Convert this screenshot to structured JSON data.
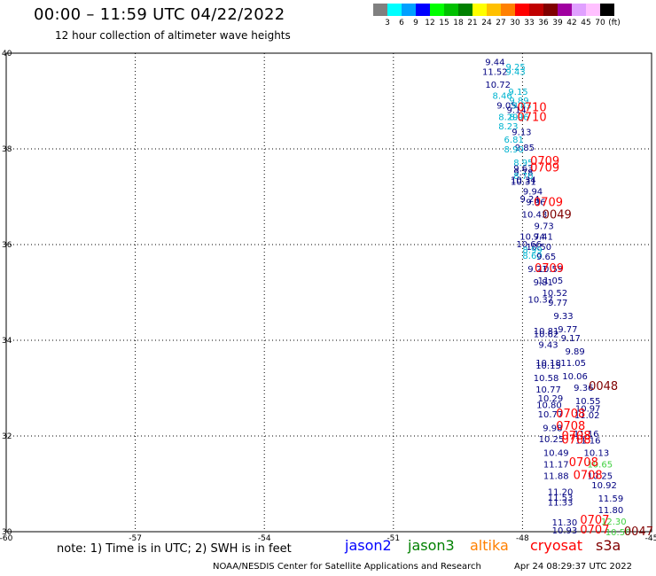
{
  "header": {
    "title": "00:00 – 11:59 UTC 04/22/2022",
    "subtitle": "12 hour collection of altimeter wave heights"
  },
  "color_scale": {
    "colors": [
      "#808080",
      "#00ffff",
      "#00a0ff",
      "#0000ff",
      "#00ff00",
      "#00c000",
      "#008000",
      "#ffff00",
      "#ffc000",
      "#ff8000",
      "#ff0000",
      "#c00000",
      "#800000",
      "#a000a0",
      "#e0a0ff",
      "#ffc0ff",
      "#000000"
    ],
    "labels": [
      "3",
      "6",
      "9",
      "12",
      "15",
      "18",
      "21",
      "24",
      "27",
      "30",
      "33",
      "36",
      "39",
      "42",
      "45",
      "70",
      "(ft)"
    ]
  },
  "axes": {
    "lat_labels": [
      "40",
      "38",
      "36",
      "34",
      "32",
      "30"
    ],
    "lon_labels": [
      "-60",
      "-57",
      "-54",
      "-51",
      "-48",
      "-45"
    ]
  },
  "observations": {
    "colors": {
      "dark": "#000080",
      "light": "#00b4d0",
      "red": "#ff0000",
      "darkred": "#800000",
      "green": "#40d040",
      "orange": "#e08000"
    },
    "points": [
      {
        "t": "9.44",
        "c": "dark",
        "lon": -48.64,
        "lat": 39.82
      },
      {
        "t": "9.25",
        "c": "light",
        "lon": -48.16,
        "lat": 39.72
      },
      {
        "t": "11.52",
        "c": "dark",
        "lon": -48.64,
        "lat": 39.62
      },
      {
        "t": "9.43",
        "c": "light",
        "lon": -48.16,
        "lat": 39.62
      },
      {
        "t": "10.72",
        "c": "dark",
        "lon": -48.57,
        "lat": 39.35
      },
      {
        "t": "9.15",
        "c": "light",
        "lon": -48.1,
        "lat": 39.2
      },
      {
        "t": "8.46",
        "c": "light",
        "lon": -48.47,
        "lat": 39.12
      },
      {
        "t": "9.89",
        "c": "light",
        "lon": -48.08,
        "lat": 39.02
      },
      {
        "t": "9.05",
        "c": "dark",
        "lon": -48.37,
        "lat": 38.92
      },
      {
        "t": "9.83",
        "c": "light",
        "lon": -48.02,
        "lat": 38.92
      },
      {
        "t": "9.14",
        "c": "dark",
        "lon": -48.14,
        "lat": 38.82
      },
      {
        "t": "8.29",
        "c": "light",
        "lon": -48.33,
        "lat": 38.68
      },
      {
        "t": "8.96",
        "c": "light",
        "lon": -48.08,
        "lat": 38.68
      },
      {
        "t": "8.23",
        "c": "light",
        "lon": -48.33,
        "lat": 38.48
      },
      {
        "t": "9.13",
        "c": "dark",
        "lon": -48.02,
        "lat": 38.36
      },
      {
        "t": "6.81",
        "c": "light",
        "lon": -48.2,
        "lat": 38.2
      },
      {
        "t": "9.85",
        "c": "dark",
        "lon": -47.95,
        "lat": 38.04
      },
      {
        "t": "8.90",
        "c": "light",
        "lon": -48.2,
        "lat": 38.0
      },
      {
        "t": "8.95",
        "c": "light",
        "lon": -47.98,
        "lat": 37.72
      },
      {
        "t": "9.63",
        "c": "dark",
        "lon": -47.98,
        "lat": 37.6
      },
      {
        "t": "9.78",
        "c": "dark",
        "lon": -47.98,
        "lat": 37.52
      },
      {
        "t": "8.70",
        "c": "light",
        "lon": -47.98,
        "lat": 37.44
      },
      {
        "t": "10.34",
        "c": "dark",
        "lon": -47.98,
        "lat": 37.36
      },
      {
        "t": "10.31",
        "c": "dark",
        "lon": -47.98,
        "lat": 37.32
      },
      {
        "t": "9.94",
        "c": "dark",
        "lon": -47.76,
        "lat": 37.12
      },
      {
        "t": "9.24",
        "c": "dark",
        "lon": -47.83,
        "lat": 36.96
      },
      {
        "t": "9.96",
        "c": "dark",
        "lon": -47.69,
        "lat": 36.9
      },
      {
        "t": "10.43",
        "c": "dark",
        "lon": -47.72,
        "lat": 36.64
      },
      {
        "t": "9.73",
        "c": "dark",
        "lon": -47.5,
        "lat": 36.4
      },
      {
        "t": "9.41",
        "c": "dark",
        "lon": -47.52,
        "lat": 36.18
      },
      {
        "t": "10.74",
        "c": "dark",
        "lon": -47.77,
        "lat": 36.18
      },
      {
        "t": "10.66",
        "c": "dark",
        "lon": -47.85,
        "lat": 36.02
      },
      {
        "t": "10.50",
        "c": "dark",
        "lon": -47.62,
        "lat": 35.96
      },
      {
        "t": "8.99",
        "c": "light",
        "lon": -47.77,
        "lat": 35.9
      },
      {
        "t": "8.60",
        "c": "light",
        "lon": -47.77,
        "lat": 35.78
      },
      {
        "t": "9.65",
        "c": "dark",
        "lon": -47.45,
        "lat": 35.76
      },
      {
        "t": "9.21",
        "c": "dark",
        "lon": -47.65,
        "lat": 35.5
      },
      {
        "t": "10.59",
        "c": "dark",
        "lon": -47.35,
        "lat": 35.5
      },
      {
        "t": "11.05",
        "c": "dark",
        "lon": -47.35,
        "lat": 35.26
      },
      {
        "t": "9.81",
        "c": "dark",
        "lon": -47.52,
        "lat": 35.22
      },
      {
        "t": "10.52",
        "c": "dark",
        "lon": -47.25,
        "lat": 35.0
      },
      {
        "t": "10.37",
        "c": "dark",
        "lon": -47.58,
        "lat": 34.86
      },
      {
        "t": "9.77",
        "c": "dark",
        "lon": -47.18,
        "lat": 34.8
      },
      {
        "t": "9.33",
        "c": "dark",
        "lon": -47.05,
        "lat": 34.52
      },
      {
        "t": "9.77",
        "c": "dark",
        "lon": -46.95,
        "lat": 34.24
      },
      {
        "t": "10.81",
        "c": "dark",
        "lon": -47.45,
        "lat": 34.2
      },
      {
        "t": "10.62",
        "c": "dark",
        "lon": -47.45,
        "lat": 34.14
      },
      {
        "t": "9.17",
        "c": "dark",
        "lon": -46.88,
        "lat": 34.06
      },
      {
        "t": "9.43",
        "c": "dark",
        "lon": -47.4,
        "lat": 33.92
      },
      {
        "t": "9.89",
        "c": "dark",
        "lon": -46.78,
        "lat": 33.78
      },
      {
        "t": "10.18",
        "c": "dark",
        "lon": -47.4,
        "lat": 33.54
      },
      {
        "t": "11.05",
        "c": "dark",
        "lon": -46.82,
        "lat": 33.54
      },
      {
        "t": "10.15",
        "c": "dark",
        "lon": -47.4,
        "lat": 33.48
      },
      {
        "t": "10.06",
        "c": "dark",
        "lon": -46.78,
        "lat": 33.26
      },
      {
        "t": "10.58",
        "c": "dark",
        "lon": -47.45,
        "lat": 33.22
      },
      {
        "t": "9.36",
        "c": "dark",
        "lon": -46.58,
        "lat": 33.02
      },
      {
        "t": "10.77",
        "c": "dark",
        "lon": -47.4,
        "lat": 32.98
      },
      {
        "t": "10.55",
        "c": "dark",
        "lon": -46.48,
        "lat": 32.74
      },
      {
        "t": "10.29",
        "c": "dark",
        "lon": -47.35,
        "lat": 32.8
      },
      {
        "t": "10.80",
        "c": "dark",
        "lon": -47.38,
        "lat": 32.66
      },
      {
        "t": "10.97",
        "c": "dark",
        "lon": -46.48,
        "lat": 32.58
      },
      {
        "t": "10.77",
        "c": "dark",
        "lon": -47.35,
        "lat": 32.46
      },
      {
        "t": "11.02",
        "c": "dark",
        "lon": -46.5,
        "lat": 32.44
      },
      {
        "t": "9.98",
        "c": "dark",
        "lon": -47.3,
        "lat": 32.18
      },
      {
        "t": "11.16",
        "c": "dark",
        "lon": -46.52,
        "lat": 32.06
      },
      {
        "t": "10.25",
        "c": "dark",
        "lon": -47.33,
        "lat": 31.94
      },
      {
        "t": "11.16",
        "c": "dark",
        "lon": -46.48,
        "lat": 31.92
      },
      {
        "t": "10.49",
        "c": "dark",
        "lon": -47.22,
        "lat": 31.66
      },
      {
        "t": "10.13",
        "c": "dark",
        "lon": -46.28,
        "lat": 31.66
      },
      {
        "t": "11.17",
        "c": "dark",
        "lon": -47.22,
        "lat": 31.42
      },
      {
        "t": "10.65",
        "c": "green",
        "lon": -46.2,
        "lat": 31.42
      },
      {
        "t": "11.88",
        "c": "dark",
        "lon": -47.22,
        "lat": 31.18
      },
      {
        "t": "10.25",
        "c": "dark",
        "lon": -46.2,
        "lat": 31.18
      },
      {
        "t": "10.92",
        "c": "dark",
        "lon": -46.1,
        "lat": 30.98
      },
      {
        "t": "11.20",
        "c": "dark",
        "lon": -47.12,
        "lat": 30.84
      },
      {
        "t": "11.53",
        "c": "dark",
        "lon": -47.12,
        "lat": 30.72
      },
      {
        "t": "11.59",
        "c": "dark",
        "lon": -45.95,
        "lat": 30.7
      },
      {
        "t": "11.33",
        "c": "dark",
        "lon": -47.12,
        "lat": 30.62
      },
      {
        "t": "11.80",
        "c": "dark",
        "lon": -45.95,
        "lat": 30.46
      },
      {
        "t": "11.30",
        "c": "dark",
        "lon": -47.02,
        "lat": 30.2
      },
      {
        "t": "12.30",
        "c": "green",
        "lon": -45.88,
        "lat": 30.22
      },
      {
        "t": "10.93",
        "c": "dark",
        "lon": -47.02,
        "lat": 30.04
      },
      {
        "t": "10.50",
        "c": "green",
        "lon": -45.78,
        "lat": 30.0
      },
      {
        "t": "0710",
        "c": "red",
        "lon": -47.78,
        "lat": 38.86,
        "big": true
      },
      {
        "t": "0710",
        "c": "red",
        "lon": -47.78,
        "lat": 38.66,
        "big": true
      },
      {
        "t": "0709",
        "c": "red",
        "lon": -47.48,
        "lat": 37.74,
        "big": true
      },
      {
        "t": "0709",
        "c": "red",
        "lon": -47.48,
        "lat": 37.6,
        "big": true
      },
      {
        "t": "0709",
        "c": "red",
        "lon": -47.4,
        "lat": 36.88,
        "big": true
      },
      {
        "t": "0049",
        "c": "darkred",
        "lon": -47.2,
        "lat": 36.62,
        "big": true
      },
      {
        "t": "0709",
        "c": "red",
        "lon": -47.38,
        "lat": 35.5,
        "big": true
      },
      {
        "t": "0048",
        "c": "darkred",
        "lon": -46.12,
        "lat": 33.04,
        "big": true
      },
      {
        "t": "0708",
        "c": "red",
        "lon": -46.88,
        "lat": 32.46,
        "big": true
      },
      {
        "t": "0708",
        "c": "red",
        "lon": -46.88,
        "lat": 32.2,
        "big": true
      },
      {
        "t": "0708",
        "c": "red",
        "lon": -46.75,
        "lat": 32.0,
        "big": true
      },
      {
        "t": "0708",
        "c": "red",
        "lon": -46.75,
        "lat": 31.92,
        "big": true
      },
      {
        "t": "0708",
        "c": "red",
        "lon": -46.58,
        "lat": 31.44,
        "big": true
      },
      {
        "t": "0708",
        "c": "red",
        "lon": -46.48,
        "lat": 31.18,
        "big": true
      },
      {
        "t": "0707",
        "c": "red",
        "lon": -46.32,
        "lat": 30.24,
        "big": true
      },
      {
        "t": "0707",
        "c": "red",
        "lon": -46.32,
        "lat": 30.04,
        "big": true
      },
      {
        "t": "0047",
        "c": "darkred",
        "lon": -45.3,
        "lat": 30.0,
        "big": true
      }
    ]
  },
  "note": "note:  1) Time is in UTC;  2) SWH is in feet",
  "satellites": [
    {
      "name": "jason2",
      "color": "#0000ff"
    },
    {
      "name": "jason3",
      "color": "#008000"
    },
    {
      "name": "altika",
      "color": "#ff8000"
    },
    {
      "name": "cryosat",
      "color": "#ff0000"
    },
    {
      "name": "s3a",
      "color": "#800000"
    }
  ],
  "footer": {
    "credit": "NOAA/NESDIS Center for Satellite Applications and Research",
    "generated": "Apr 24 08:29:37 UTC 2022"
  }
}
